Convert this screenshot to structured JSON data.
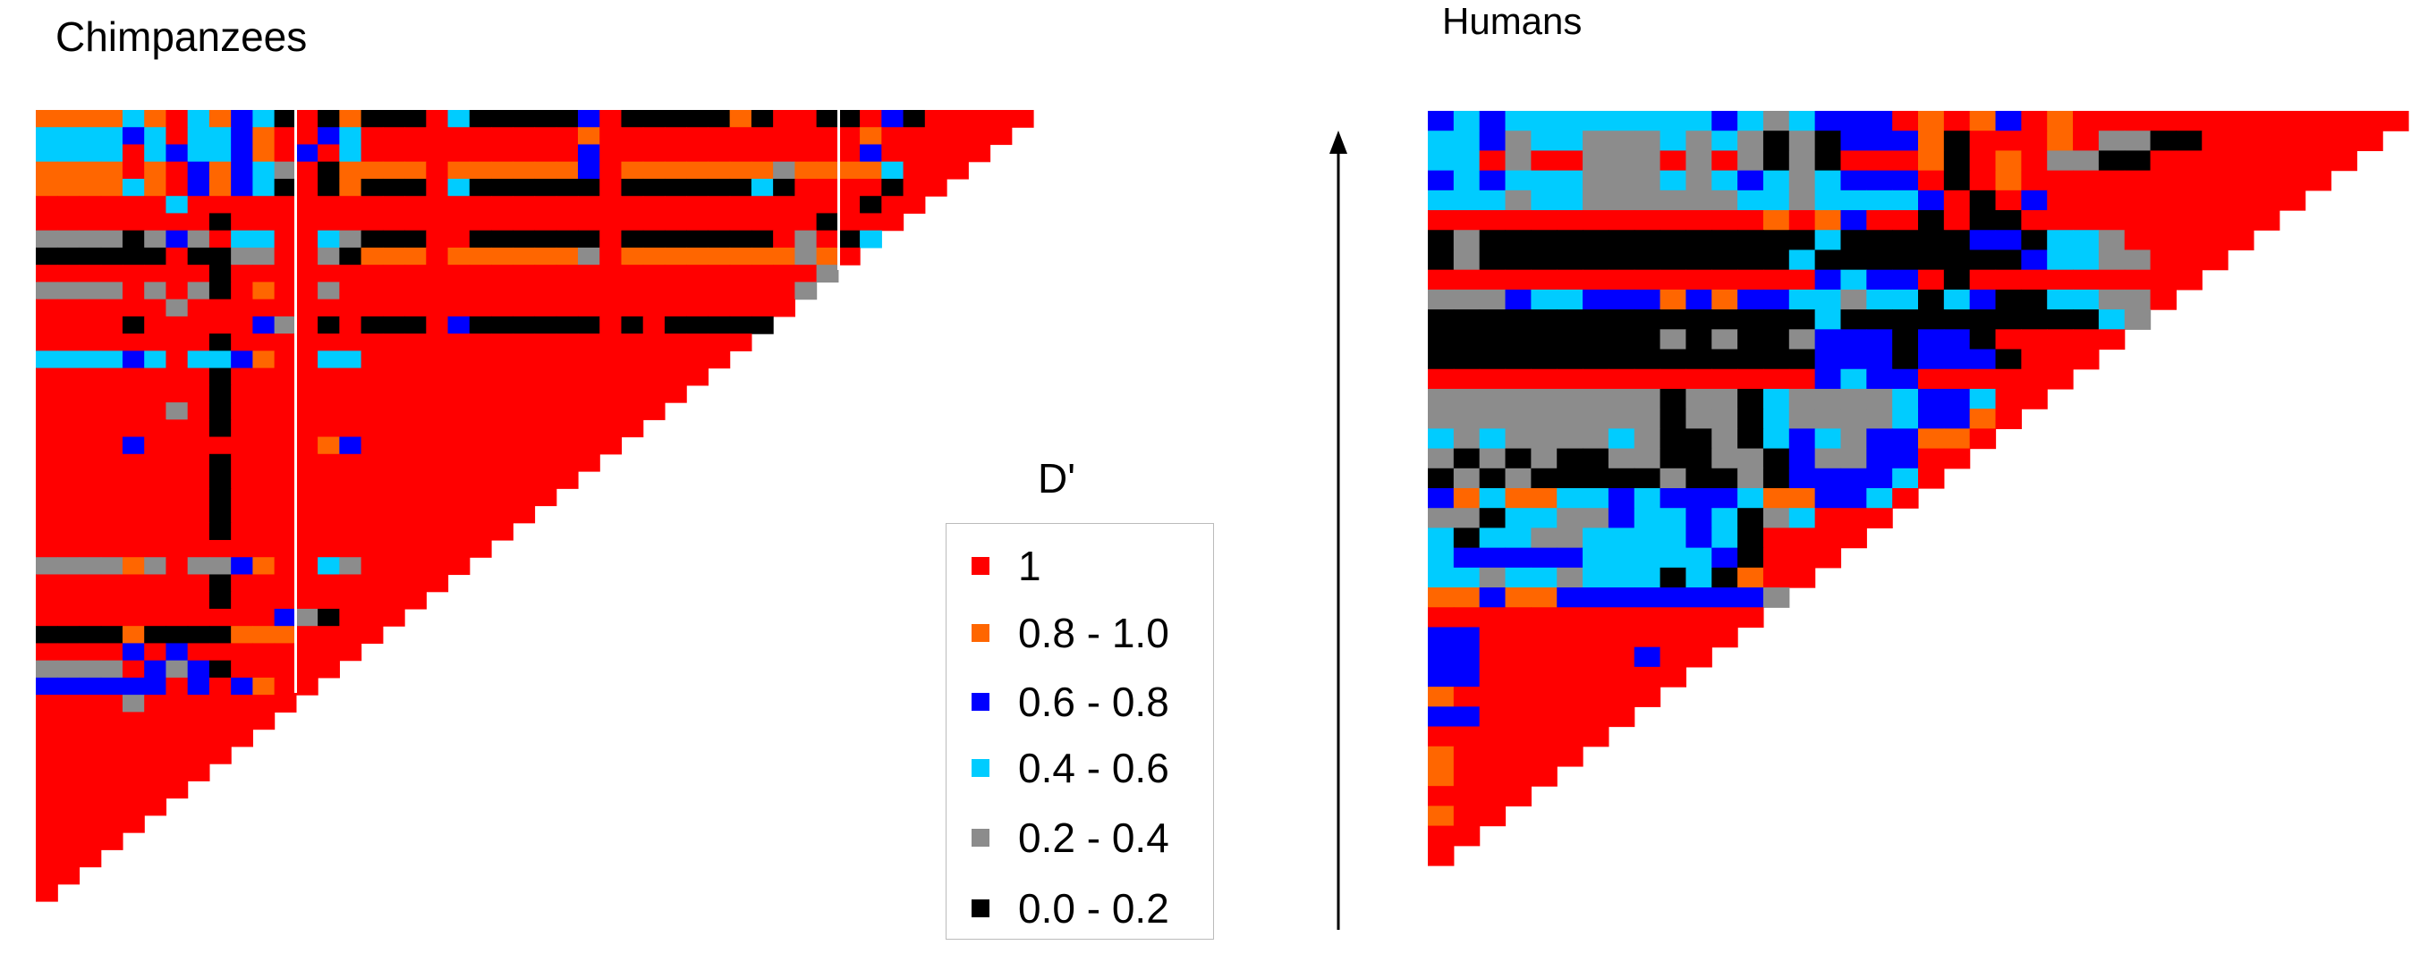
{
  "chart_data": {
    "type": "heatmap",
    "description_codes": {
      "R": "1",
      "O": "0.8 - 1.0",
      "B": "0.6 - 0.8",
      "C": "0.4 - 0.6",
      "G": "0.2 - 0.4",
      "K": "0.0 - 0.2"
    },
    "default_code": "R",
    "legend": {
      "title": "D'",
      "items": [
        {
          "code": "R",
          "label": "1",
          "color": "#ff0000"
        },
        {
          "code": "O",
          "label": "0.8 - 1.0",
          "color": "#ff6600"
        },
        {
          "code": "B",
          "label": "0.6 - 0.8",
          "color": "#0000ff"
        },
        {
          "code": "C",
          "label": "0.4 - 0.6",
          "color": "#00ccff"
        },
        {
          "code": "G",
          "label": "0.2 - 0.4",
          "color": "#8c8c8c"
        },
        {
          "code": "K",
          "label": "0.0 - 0.2",
          "color": "#000000"
        }
      ]
    },
    "panels": [
      {
        "title": "Chimpanzees",
        "size": 46,
        "rows": [
          "OOOOCORCOBCKRKOKKKRCKKKKKBRKKKKKOKRRKKRBK",
          "CCCCBCRCCBORRBCRRRRRRRRRRORRRRRRRRRRRROR",
          "CCCCRCBCCBORBRCRRRRRRRRRRBRRRRRRRRRRRRBR",
          "OOOORORBOBCGRKOOOOROOOOOOBROOOOOOOGOOOOCR",
          "OOOOCORBOBCKRKOKKKRCKKKKKKRKKKKKKCKRRRRKR",
          "RRRRRRCRRRRRRRRRRRRRRRRRRRRRRRRRRRRRRRKR",
          "RRRRRRRRKRRRRRRRRRRRRRRRRRRRRRRRRRRRKR",
          "GGGGKGBGRCCRRCGKKKRRKKKKKKRKKKKKKKRGRKC",
          "KKKKKKRKKGGRRGKOOOROOOOOOGROOOOOOOOGORC",
          "RRRRRRRRKRRRRRRRRRRRRRRRRRRRRRRRRRRRG",
          "GGGGRGRGKRORRGRRRRRRRRRRRRRRRRRRRRRG",
          "RRRRRRGRRRRRRRRRRRRRRRRRRRRRRRRRRRR",
          "RRRRKRRRRRBGRKRKKKRBKKKKKKRKRKKKKKKRK",
          "RRRRRRRRKRRR",
          "CCCCBCRCCBORRCC",
          "RRRRRRRRKR",
          "RRRRRRRRKR",
          "RRRRRRGRKR",
          "RRRRRRRRKR",
          "RRRRBRRRRRRRROB",
          "RRRRRRRRKR",
          "RRRRRRRRKR",
          "RRRRRRRRKR",
          "RRRRRRRRKR",
          "RRRRRRRRKR",
          "RRRRRRRRRR",
          "GGGGOGRGGBORRCG",
          "RRRRRRRRKR",
          "RRRRRRRRKR",
          "RRRRRRRRRRRBGK",
          "KKKKOKKKKOOO",
          "RRRRBRBRRRR",
          "GGGGRBGBKRR",
          "BBBBBBRBRBO",
          "RRRRG",
          "",
          "",
          "",
          "",
          "",
          "",
          "",
          "",
          "",
          "",
          ""
        ]
      },
      {
        "title": "Humans",
        "size": 38,
        "rows": [
          "BCBCCCCCCCCBCGCBBBROROBROR",
          "CCBGCCGGGCGCGKGKBBBOKRRRORGGKK",
          "CCRGRRGGGRGRGKGKRRROKRORGGKK",
          "BCBCCCGGGCGCBCGCBBBRKRORR",
          "CCCGCCGGGGGGCCGCCCCBRKRBRRRRRRRRRRRBR",
          "RRRRRRRRRRRRROROBRRKRKKRRRRRRRRRRCR",
          "KGKKKKKKKKKKKKKCKKKKKBBKCCGRRRRRRRCB",
          "KGKKKKKKKKKKKKCKKKKKKKKBCCGGRRRRRB",
          "RRRRRRRRRRRRRRRBCBBRKRRRRRRRRR",
          "GGGBCCBBBOBOBBCCGCCKCBKKCCGGRB",
          "KKKKKKKKKKKKKKKCKKKKKKKKKKCGG",
          "KKKKKKKKKGKGKKGBBBKBBKR",
          "KKKKKKKKKKKKKKKBBBKBBBKR",
          "RRRRRRRRRRRRRRRBCBBRR",
          "GGGGGGGGGKGGKCGGGGCBBCR",
          "GGGGGGGGGKGGKCGGGGCBBOR",
          "CGCGGGGCGKKGKCBCGBBOOR",
          "GKGKGKKGGKKGGKBGGBBR",
          "KGKGKKKKKGKKGKBBBBCR",
          "BOCOOCCBCBBBCOOBBCR",
          "GGKCCGGBCCBCKGCR",
          "CKCCGGCCCCBCKRR",
          "CBBBBBCCCCCBKR",
          "CCGCCGCCCKCKOR",
          "OOBOOBBBBBBBBG",
          "",
          "BB",
          "BBRRRRRRB",
          "BB",
          "O",
          "BB",
          "",
          "O",
          "O",
          "",
          "O",
          "",
          ""
        ]
      }
    ]
  }
}
